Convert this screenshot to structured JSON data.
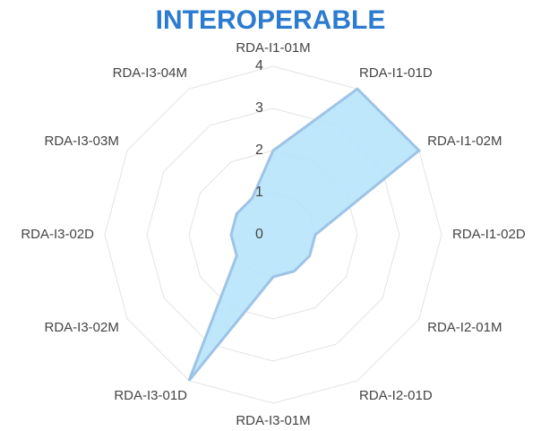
{
  "chart_data": {
    "type": "radar",
    "title": "INTEROPERABLE",
    "categories": [
      "RDA-I1-01M",
      "RDA-I1-01D",
      "RDA-I1-02M",
      "RDA-I1-02D",
      "RDA-I2-01M",
      "RDA-I2-01D",
      "RDA-I3-01M",
      "RDA-I3-01D",
      "RDA-I3-02M",
      "RDA-I3-02D",
      "RDA-I3-03M",
      "RDA-I3-04M"
    ],
    "values": [
      2,
      4,
      4,
      1,
      1,
      1,
      1,
      4,
      1,
      1,
      1,
      1
    ],
    "color": "#b3e3fb",
    "line_color": "#9ec3e6",
    "title_color": "#2b7bd0",
    "ylim": [
      0,
      4
    ],
    "yticks": [
      0,
      1,
      2,
      3,
      4
    ],
    "grid": true
  }
}
